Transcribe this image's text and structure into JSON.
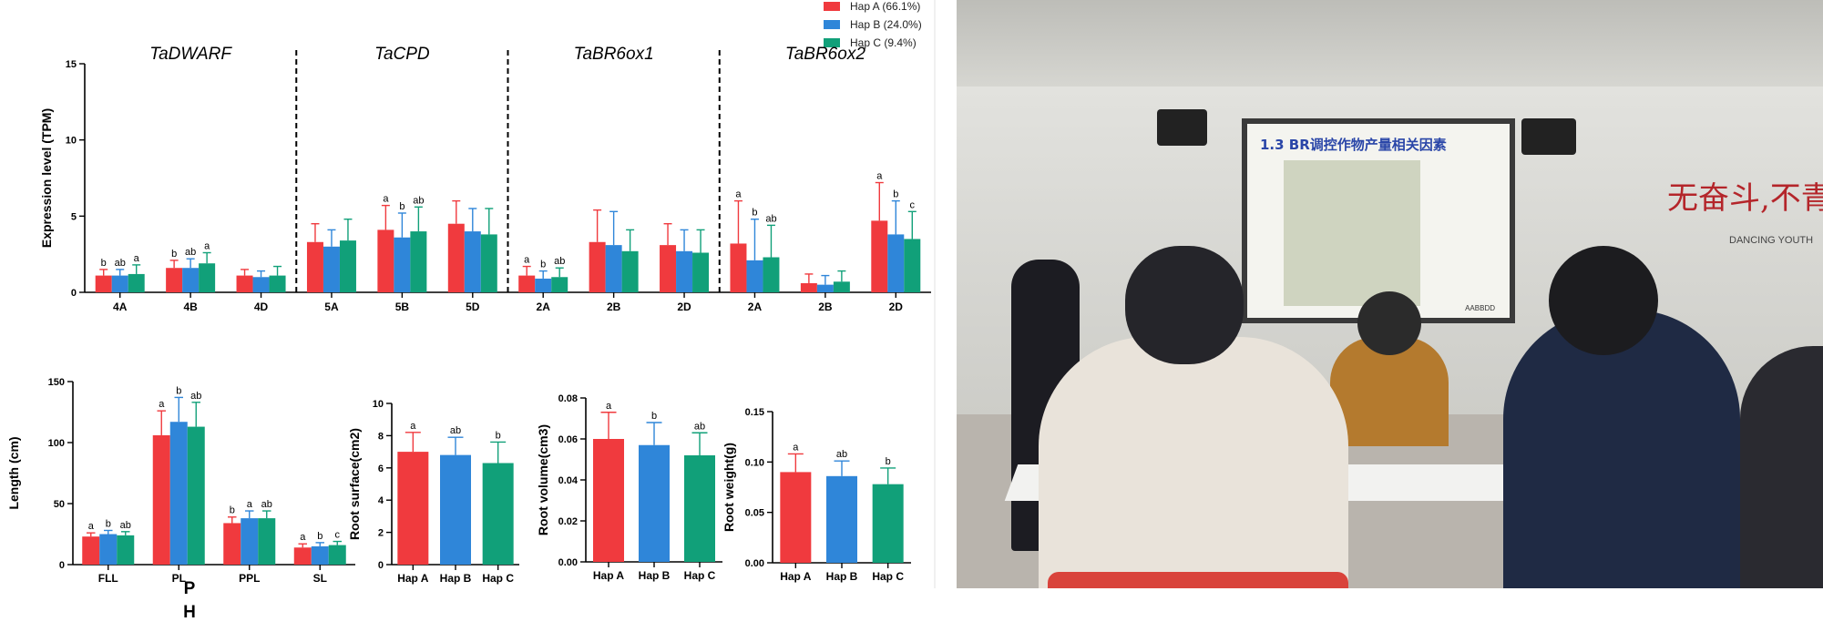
{
  "legend": [
    {
      "name": "Hap A (66.1%)",
      "color": "#f03a3e"
    },
    {
      "name": "Hap B (24.0%)",
      "color": "#2f86d9"
    },
    {
      "name": "Hap C (9.4%)",
      "color": "#11a079"
    }
  ],
  "colors": {
    "hapA": "#f03a3e",
    "hapB": "#2f86d9",
    "hapC": "#11a079",
    "photo_accent": "#b4252a"
  },
  "stray_text": {
    "line1": "P",
    "line2": "H"
  },
  "photo": {
    "slide_title": "1.3 BR调控作物产量相关因素",
    "slide_sub": "AABBDD",
    "slogan": "无奋斗,不青春",
    "slogan_sub": "DANCING YOUTH"
  },
  "chart_data": [
    {
      "type": "bar",
      "ylabel": "Expression level (TPM)",
      "ylim": [
        0,
        15
      ],
      "yticks": [
        "0",
        "5",
        "10",
        "15"
      ],
      "groups": [
        {
          "title": "TaDWARF",
          "categories": [
            "4A",
            "4B",
            "4D"
          ]
        },
        {
          "title": "TaCPD",
          "categories": [
            "5A",
            "5B",
            "5D"
          ]
        },
        {
          "title": "TaBR6ox1",
          "categories": [
            "2A",
            "2B",
            "2D"
          ]
        },
        {
          "title": "TaBR6ox2",
          "categories": [
            "2A",
            "2B",
            "2D"
          ]
        }
      ],
      "series": [
        {
          "name": "Hap A (66.1%)",
          "values": [
            1.1,
            1.6,
            1.1,
            3.3,
            4.1,
            4.5,
            1.1,
            3.3,
            3.1,
            3.2,
            0.6,
            4.7
          ],
          "errors": [
            0.4,
            0.5,
            0.4,
            1.2,
            1.6,
            1.5,
            0.6,
            2.1,
            1.4,
            2.8,
            0.6,
            2.5
          ],
          "letters": [
            "b",
            "b",
            "",
            "",
            "a",
            "",
            "a",
            "",
            "",
            "a",
            "",
            "a"
          ]
        },
        {
          "name": "Hap B (24.0%)",
          "values": [
            1.1,
            1.6,
            1.0,
            3.0,
            3.6,
            4.0,
            0.9,
            3.1,
            2.7,
            2.1,
            0.5,
            3.8
          ],
          "errors": [
            0.4,
            0.6,
            0.4,
            1.1,
            1.6,
            1.5,
            0.5,
            2.2,
            1.4,
            2.7,
            0.6,
            2.2
          ],
          "letters": [
            "ab",
            "ab",
            "",
            "",
            "b",
            "",
            "b",
            "",
            "",
            "b",
            "",
            "b"
          ]
        },
        {
          "name": "Hap C (9.4%)",
          "values": [
            1.2,
            1.9,
            1.1,
            3.4,
            4.0,
            3.8,
            1.0,
            2.7,
            2.6,
            2.3,
            0.7,
            3.5
          ],
          "errors": [
            0.6,
            0.7,
            0.6,
            1.4,
            1.6,
            1.7,
            0.6,
            1.4,
            1.5,
            2.1,
            0.7,
            1.8
          ],
          "letters": [
            "a",
            "a",
            "",
            "",
            "ab",
            "",
            "ab",
            "",
            "",
            "ab",
            "",
            "c"
          ]
        }
      ]
    },
    {
      "type": "bar",
      "ylabel": "Length (cm)",
      "ylim": [
        0,
        150
      ],
      "yticks": [
        "0",
        "50",
        "100",
        "150"
      ],
      "categories": [
        "FLL",
        "PL",
        "PPL",
        "SL"
      ],
      "series": [
        {
          "name": "Hap A",
          "values": [
            23,
            106,
            34,
            14
          ],
          "errors": [
            3,
            20,
            5,
            3
          ],
          "letters": [
            "a",
            "a",
            "b",
            "a"
          ]
        },
        {
          "name": "Hap B",
          "values": [
            25,
            117,
            38,
            15
          ],
          "errors": [
            3,
            20,
            6,
            3
          ],
          "letters": [
            "b",
            "b",
            "a",
            "b"
          ]
        },
        {
          "name": "Hap C",
          "values": [
            24,
            113,
            38,
            16
          ],
          "errors": [
            3,
            20,
            6,
            3
          ],
          "letters": [
            "ab",
            "ab",
            "ab",
            "c"
          ]
        }
      ]
    },
    {
      "type": "bar",
      "ylabel": "Root surface(cm2)",
      "ylim": [
        0,
        10
      ],
      "yticks": [
        "0",
        "2",
        "4",
        "6",
        "8",
        "10"
      ],
      "categories": [
        "Hap A",
        "Hap B",
        "Hap C"
      ],
      "values": [
        7.0,
        6.8,
        6.3
      ],
      "errors": [
        1.2,
        1.1,
        1.3
      ],
      "letters": [
        "a",
        "ab",
        "b"
      ]
    },
    {
      "type": "bar",
      "ylabel": "Root volume(cm3)",
      "ylim": [
        0,
        0.08
      ],
      "yticks": [
        "0.00",
        "0.02",
        "0.04",
        "0.06",
        "0.08"
      ],
      "categories": [
        "Hap A",
        "Hap B",
        "Hap C"
      ],
      "values": [
        0.06,
        0.057,
        0.052
      ],
      "errors": [
        0.013,
        0.011,
        0.011
      ],
      "letters": [
        "a",
        "b",
        "ab"
      ]
    },
    {
      "type": "bar",
      "ylabel": "Root weight(g)",
      "ylim": [
        0,
        0.15
      ],
      "yticks": [
        "0.00",
        "0.05",
        "0.10",
        "0.15"
      ],
      "categories": [
        "Hap A",
        "Hap B",
        "Hap C"
      ],
      "values": [
        0.09,
        0.086,
        0.078
      ],
      "errors": [
        0.018,
        0.015,
        0.016
      ],
      "letters": [
        "a",
        "ab",
        "b"
      ]
    }
  ]
}
